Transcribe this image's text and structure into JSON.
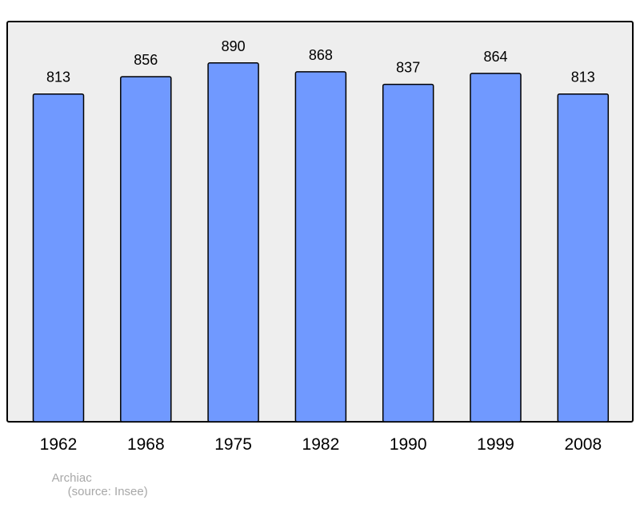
{
  "chart_data": {
    "type": "bar",
    "categories": [
      "1962",
      "1968",
      "1975",
      "1982",
      "1990",
      "1999",
      "2008"
    ],
    "values": [
      813,
      856,
      890,
      868,
      837,
      864,
      813
    ],
    "grid": false,
    "colors": {
      "bar_fill": "#7099ff",
      "bar_stroke": "#000000",
      "plot_background": "#eeeeee",
      "frame": "#000000"
    }
  },
  "footer": {
    "commune": "Archiac",
    "source": "(source: Insee)"
  }
}
